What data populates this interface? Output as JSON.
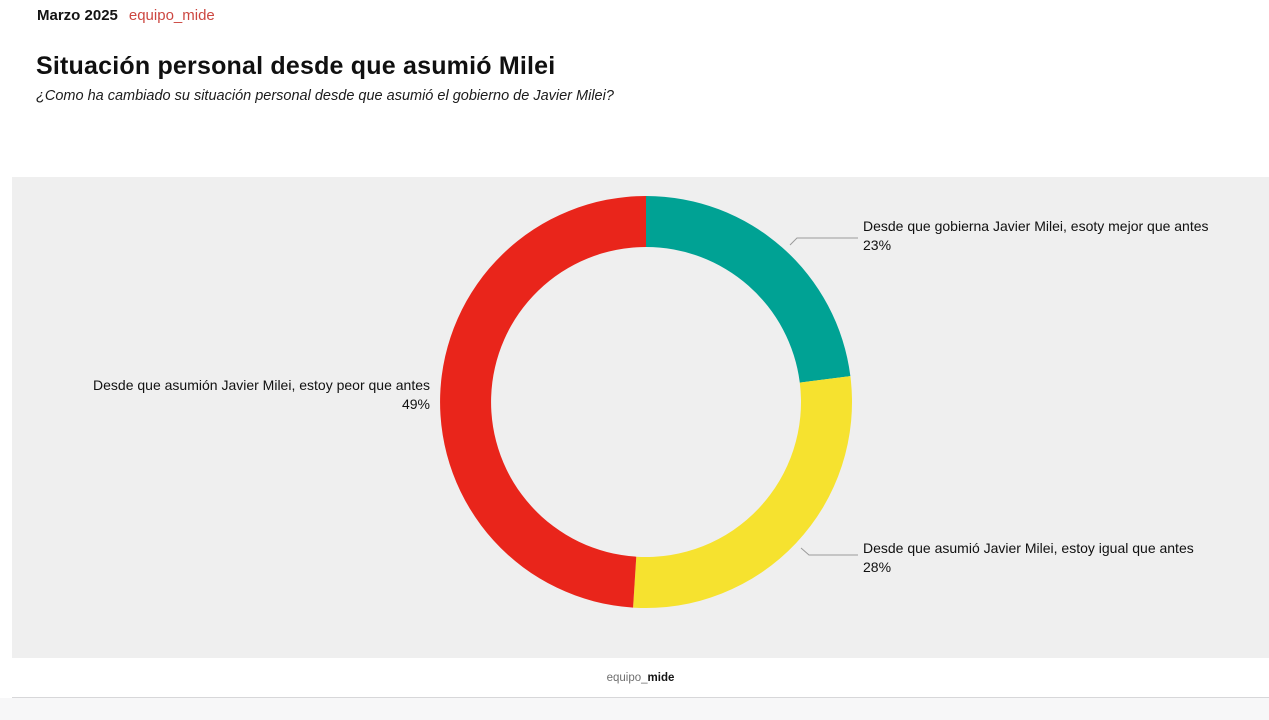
{
  "header": {
    "date": "Marzo 2025",
    "brand": "equipo_mide"
  },
  "title": "Situación personal desde que asumió Milei",
  "subtitle": "¿Como ha cambiado su situación personal desde que asumió el gobierno de Javier Milei?",
  "chart_data": {
    "type": "pie",
    "subtype": "donut",
    "start_angle_deg": 0,
    "direction": "clockwise",
    "panel_background": "#efefef",
    "segments": [
      {
        "label": "Desde que gobierna Javier Milei, esoty mejor que antes",
        "value": 23,
        "value_label": "23%",
        "color": "#00a294"
      },
      {
        "label": "Desde que asumió Javier Milei, estoy igual que antes",
        "value": 28,
        "value_label": "28%",
        "color": "#f6e22f"
      },
      {
        "label": "Desde que asumión Javier Milei, estoy peor que antes",
        "value": 49,
        "value_label": "49%",
        "color": "#e9251b"
      }
    ]
  },
  "footer": {
    "brand_light": "equipo_",
    "brand_bold": "mide"
  }
}
